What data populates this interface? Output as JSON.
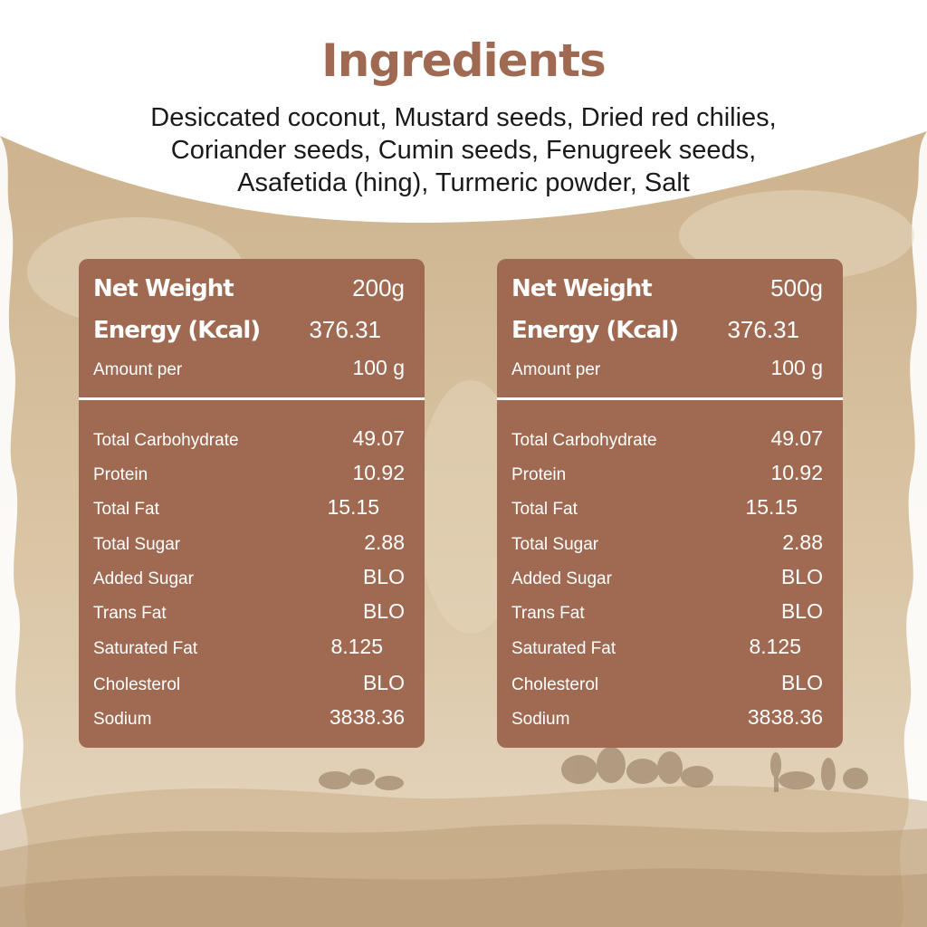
{
  "title": "Ingredients",
  "ingredients_lines": [
    "Desiccated coconut, Mustard seeds, Dried red chilies,",
    "Coriander seeds, Cumin seeds, Fenugreek seeds,",
    "Asafetida (hing), Turmeric powder, Salt"
  ],
  "panels": [
    {
      "header": [
        {
          "label": "Net Weight",
          "value": "200g"
        },
        {
          "label": "Energy (Kcal)",
          "value": "376.31"
        },
        {
          "label": "Amount per",
          "value": "100 g"
        }
      ],
      "rows": [
        {
          "label": "Total Carbohydrate",
          "value": "49.07"
        },
        {
          "label": "Protein",
          "value": "10.92"
        },
        {
          "label": "Total Fat",
          "value": "15.15"
        },
        {
          "label": "Total Sugar",
          "value": "2.88"
        },
        {
          "label": "Added Sugar",
          "value": "BLO"
        },
        {
          "label": "Trans Fat",
          "value": "BLO"
        },
        {
          "label": "Saturated Fat",
          "value": "8.125"
        },
        {
          "label": "Cholesterol",
          "value": "BLO"
        },
        {
          "label": "Sodium",
          "value": "3838.36"
        }
      ]
    },
    {
      "header": [
        {
          "label": "Net Weight",
          "value": "500g"
        },
        {
          "label": "Energy (Kcal)",
          "value": "376.31"
        },
        {
          "label": "Amount per",
          "value": "100 g"
        }
      ],
      "rows": [
        {
          "label": "Total Carbohydrate",
          "value": "49.07"
        },
        {
          "label": "Protein",
          "value": "10.92"
        },
        {
          "label": "Total Fat",
          "value": "15.15"
        },
        {
          "label": "Total Sugar",
          "value": "2.88"
        },
        {
          "label": "Added Sugar",
          "value": "BLO"
        },
        {
          "label": "Trans Fat",
          "value": "BLO"
        },
        {
          "label": "Saturated Fat",
          "value": "8.125"
        },
        {
          "label": "Cholesterol",
          "value": "BLO"
        },
        {
          "label": "Sodium",
          "value": "3838.36"
        }
      ]
    }
  ],
  "colors": {
    "panel": "#a06a52",
    "title": "#a06a52",
    "parchment": "#d8c4a4",
    "parchment_light": "#eadfcb"
  }
}
